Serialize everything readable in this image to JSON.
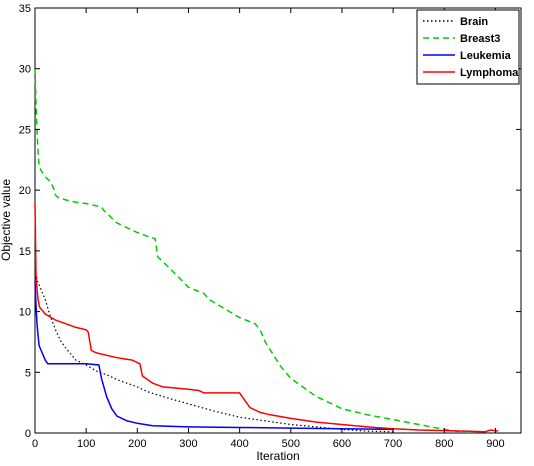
{
  "chart_data": {
    "type": "line",
    "title": "",
    "xlabel": "Iteration",
    "ylabel": "Objective value",
    "xlim": [
      0,
      950
    ],
    "ylim": [
      0,
      35
    ],
    "xticks": [
      0,
      100,
      200,
      300,
      400,
      500,
      600,
      700,
      800,
      900
    ],
    "yticks": [
      0,
      5,
      10,
      15,
      20,
      25,
      30,
      35
    ],
    "grid": false,
    "legend_position": "top-right",
    "series": [
      {
        "name": "Brain",
        "color": "#000000",
        "style": "dotted",
        "x": [
          0,
          5,
          10,
          20,
          30,
          40,
          50,
          60,
          70,
          80,
          90,
          100,
          120,
          140,
          160,
          180,
          200,
          220,
          250,
          300,
          350,
          400,
          450,
          500,
          550,
          600,
          650,
          700
        ],
        "y": [
          13.5,
          12.5,
          12.0,
          11.0,
          9.6,
          8.5,
          7.6,
          7.0,
          6.5,
          6.0,
          5.8,
          5.6,
          5.1,
          4.8,
          4.4,
          4.1,
          3.8,
          3.4,
          3.0,
          2.4,
          1.8,
          1.3,
          1.0,
          0.7,
          0.5,
          0.3,
          0.15,
          0.1
        ]
      },
      {
        "name": "Breast3",
        "color": "#00cc00",
        "style": "dashed",
        "x": [
          0,
          2,
          4,
          6,
          8,
          12,
          20,
          30,
          38,
          40,
          45,
          60,
          80,
          100,
          120,
          130,
          135,
          160,
          200,
          220,
          235,
          240,
          260,
          300,
          330,
          340,
          360,
          400,
          430,
          440,
          450,
          480,
          500,
          550,
          600,
          650,
          700,
          750,
          800,
          840
        ],
        "y": [
          30,
          27,
          25,
          23,
          22,
          21.6,
          21.1,
          20.7,
          20.0,
          19.6,
          19.4,
          19.2,
          19.0,
          18.9,
          18.7,
          18.6,
          18.3,
          17.3,
          16.5,
          16.2,
          16.0,
          14.5,
          13.7,
          12.0,
          11.5,
          11.0,
          10.5,
          9.5,
          9.0,
          8.5,
          7.5,
          5.5,
          4.5,
          3.0,
          2.0,
          1.5,
          1.1,
          0.7,
          0.3,
          0.05
        ]
      },
      {
        "name": "Leukemia",
        "color": "#0000ff",
        "style": "solid",
        "x": [
          0,
          2,
          4,
          6,
          8,
          10,
          15,
          20,
          25,
          40,
          60,
          100,
          125,
          130,
          140,
          150,
          160,
          180,
          200,
          230,
          300,
          400,
          500,
          600,
          700
        ],
        "y": [
          12.5,
          10.5,
          9.0,
          8.0,
          7.2,
          7.0,
          6.5,
          6.0,
          5.7,
          5.7,
          5.7,
          5.7,
          5.6,
          4.5,
          3.0,
          2.0,
          1.4,
          1.0,
          0.8,
          0.6,
          0.5,
          0.45,
          0.4,
          0.35,
          0.3
        ]
      },
      {
        "name": "Lymphoma",
        "color": "#ff0000",
        "style": "solid",
        "x": [
          0,
          2,
          4,
          6,
          8,
          10,
          20,
          40,
          60,
          80,
          100,
          104,
          110,
          120,
          140,
          160,
          190,
          205,
          210,
          230,
          250,
          300,
          320,
          330,
          360,
          400,
          410,
          420,
          440,
          460,
          500,
          550,
          600,
          650,
          700,
          750,
          800,
          850,
          880,
          890,
          900,
          905
        ],
        "y": [
          19.0,
          13.0,
          11.8,
          11.0,
          10.5,
          10.3,
          9.8,
          9.3,
          9.0,
          8.7,
          8.5,
          8.3,
          6.8,
          6.6,
          6.4,
          6.2,
          6.0,
          5.7,
          4.7,
          4.1,
          3.8,
          3.6,
          3.5,
          3.3,
          3.3,
          3.3,
          2.7,
          2.1,
          1.7,
          1.5,
          1.2,
          0.9,
          0.7,
          0.5,
          0.35,
          0.25,
          0.2,
          0.15,
          0.1,
          0.25,
          0.2,
          0.15
        ]
      }
    ]
  }
}
